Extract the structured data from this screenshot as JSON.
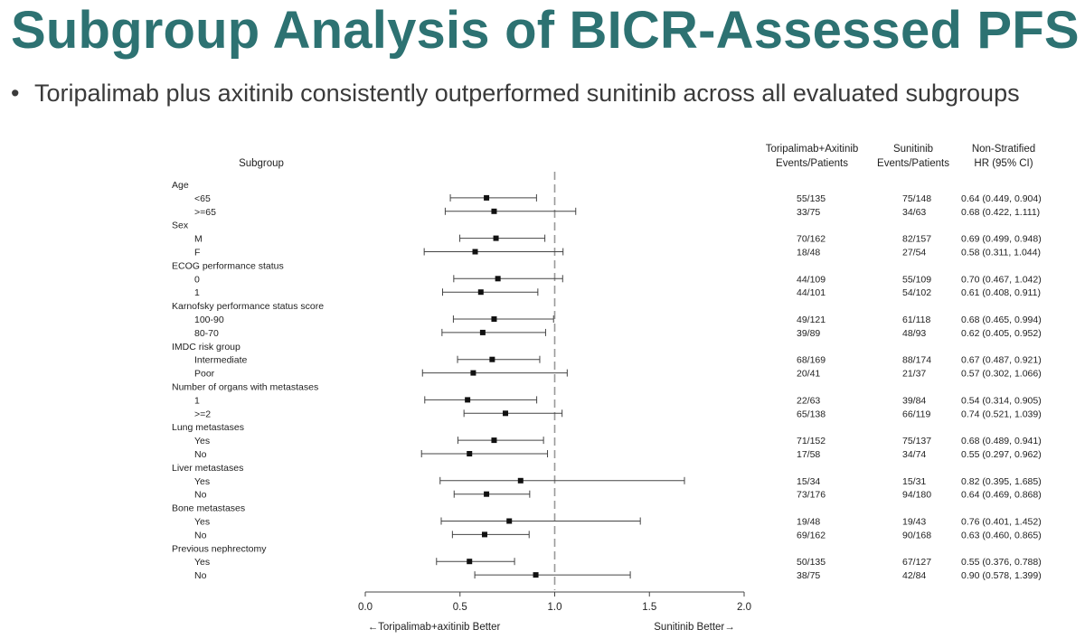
{
  "slide": {
    "title": "Subgroup Analysis of BICR-Assessed PFS",
    "bullet": "Toripalimab plus axitinib consistently outperformed sunitinib across all evaluated subgroups"
  },
  "colors": {
    "title": "#2d7272",
    "bullet_text": "#3a3a3a",
    "marker": "#111111",
    "reference_line": "#999999"
  },
  "chart_data": {
    "type": "forest",
    "headers": {
      "subgroup": "Subgroup",
      "arm1": [
        "Toripalimab+Axitinib",
        "Events/Patients"
      ],
      "arm2": [
        "Sunitinib",
        "Events/Patients"
      ],
      "hr": [
        "Non-Stratified",
        "HR (95% CI)"
      ]
    },
    "xlim": [
      0,
      2
    ],
    "xticks": [
      "0.0",
      "0.5",
      "1.0",
      "1.5",
      "2.0"
    ],
    "reference_value": 1.0,
    "xlabel_left": "←Toripalimab+axitinib Better",
    "xlabel_right": "Sunitinib Better→",
    "rows": [
      {
        "label": "Age",
        "header": true
      },
      {
        "label": "<65",
        "hr": 0.64,
        "lo": 0.449,
        "hi": 0.904,
        "arm1": "55/135",
        "arm2": "75/148",
        "hr_text": "0.64 (0.449, 0.904)"
      },
      {
        "label": ">=65",
        "hr": 0.68,
        "lo": 0.422,
        "hi": 1.111,
        "arm1": "33/75",
        "arm2": "34/63",
        "hr_text": "0.68 (0.422, 1.111)"
      },
      {
        "label": "Sex",
        "header": true
      },
      {
        "label": "M",
        "hr": 0.69,
        "lo": 0.499,
        "hi": 0.948,
        "arm1": "70/162",
        "arm2": "82/157",
        "hr_text": "0.69 (0.499, 0.948)"
      },
      {
        "label": "F",
        "hr": 0.58,
        "lo": 0.311,
        "hi": 1.044,
        "arm1": "18/48",
        "arm2": "27/54",
        "hr_text": "0.58 (0.311, 1.044)"
      },
      {
        "label": "ECOG performance status",
        "header": true
      },
      {
        "label": "0",
        "hr": 0.7,
        "lo": 0.467,
        "hi": 1.042,
        "arm1": "44/109",
        "arm2": "55/109",
        "hr_text": "0.70 (0.467, 1.042)"
      },
      {
        "label": "1",
        "hr": 0.61,
        "lo": 0.408,
        "hi": 0.911,
        "arm1": "44/101",
        "arm2": "54/102",
        "hr_text": "0.61 (0.408, 0.911)"
      },
      {
        "label": "Karnofsky performance status score",
        "header": true
      },
      {
        "label": "100-90",
        "hr": 0.68,
        "lo": 0.465,
        "hi": 0.994,
        "arm1": "49/121",
        "arm2": "61/118",
        "hr_text": "0.68 (0.465, 0.994)"
      },
      {
        "label": "80-70",
        "hr": 0.62,
        "lo": 0.405,
        "hi": 0.952,
        "arm1": "39/89",
        "arm2": "48/93",
        "hr_text": "0.62 (0.405, 0.952)"
      },
      {
        "label": "IMDC risk group",
        "header": true
      },
      {
        "label": "Intermediate",
        "hr": 0.67,
        "lo": 0.487,
        "hi": 0.921,
        "arm1": "68/169",
        "arm2": "88/174",
        "hr_text": "0.67 (0.487, 0.921)"
      },
      {
        "label": "Poor",
        "hr": 0.57,
        "lo": 0.302,
        "hi": 1.066,
        "arm1": "20/41",
        "arm2": "21/37",
        "hr_text": "0.57 (0.302, 1.066)"
      },
      {
        "label": "Number of organs with metastases",
        "header": true
      },
      {
        "label": "1",
        "hr": 0.54,
        "lo": 0.314,
        "hi": 0.905,
        "arm1": "22/63",
        "arm2": "39/84",
        "hr_text": "0.54 (0.314, 0.905)"
      },
      {
        "label": ">=2",
        "hr": 0.74,
        "lo": 0.521,
        "hi": 1.039,
        "arm1": "65/138",
        "arm2": "66/119",
        "hr_text": "0.74 (0.521, 1.039)"
      },
      {
        "label": "Lung metastases",
        "header": true
      },
      {
        "label": "Yes",
        "hr": 0.68,
        "lo": 0.489,
        "hi": 0.941,
        "arm1": "71/152",
        "arm2": "75/137",
        "hr_text": "0.68 (0.489, 0.941)"
      },
      {
        "label": "No",
        "hr": 0.55,
        "lo": 0.297,
        "hi": 0.962,
        "arm1": "17/58",
        "arm2": "34/74",
        "hr_text": "0.55 (0.297, 0.962)"
      },
      {
        "label": "Liver metastases",
        "header": true
      },
      {
        "label": "Yes",
        "hr": 0.82,
        "lo": 0.395,
        "hi": 1.685,
        "arm1": "15/34",
        "arm2": "15/31",
        "hr_text": "0.82 (0.395, 1.685)"
      },
      {
        "label": "No",
        "hr": 0.64,
        "lo": 0.469,
        "hi": 0.868,
        "arm1": "73/176",
        "arm2": "94/180",
        "hr_text": "0.64 (0.469, 0.868)"
      },
      {
        "label": "Bone metastases",
        "header": true
      },
      {
        "label": "Yes",
        "hr": 0.76,
        "lo": 0.401,
        "hi": 1.452,
        "arm1": "19/48",
        "arm2": "19/43",
        "hr_text": "0.76 (0.401, 1.452)"
      },
      {
        "label": "No",
        "hr": 0.63,
        "lo": 0.46,
        "hi": 0.865,
        "arm1": "69/162",
        "arm2": "90/168",
        "hr_text": "0.63 (0.460, 0.865)"
      },
      {
        "label": "Previous nephrectomy",
        "header": true
      },
      {
        "label": "Yes",
        "hr": 0.55,
        "lo": 0.376,
        "hi": 0.788,
        "arm1": "50/135",
        "arm2": "67/127",
        "hr_text": "0.55 (0.376, 0.788)"
      },
      {
        "label": "No",
        "hr": 0.9,
        "lo": 0.578,
        "hi": 1.399,
        "arm1": "38/75",
        "arm2": "42/84",
        "hr_text": "0.90 (0.578, 1.399)"
      }
    ]
  }
}
